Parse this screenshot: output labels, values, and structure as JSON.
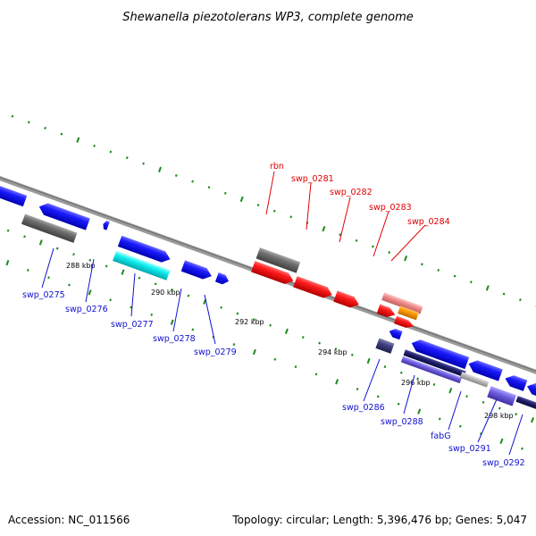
{
  "title": "Shewanella piezotolerans WP3, complete genome",
  "footer": {
    "accession": "Accession: NC_011566",
    "summary": "Topology: circular; Length: 5,396,476 bp; Genes: 5,047"
  },
  "ticks": [
    "288 kbp",
    "290 kbp",
    "292 kbp",
    "294 kbp",
    "296 kbp",
    "298 kbp"
  ],
  "colors": {
    "forward_label": "#e00000",
    "reverse_label": "#1010d0",
    "backbone": "#8a8a8a",
    "tick": "#1a8a1a"
  },
  "top_labels": [
    "rbn",
    "swp_0281",
    "swp_0282",
    "swp_0283",
    "swp_0284"
  ],
  "bottom_labels": [
    "swp_0275",
    "swp_0276",
    "swp_0277",
    "swp_0278",
    "swp_0279",
    "swp_0286",
    "swp_0288",
    "fabG",
    "swp_0291",
    "swp_0292"
  ]
}
